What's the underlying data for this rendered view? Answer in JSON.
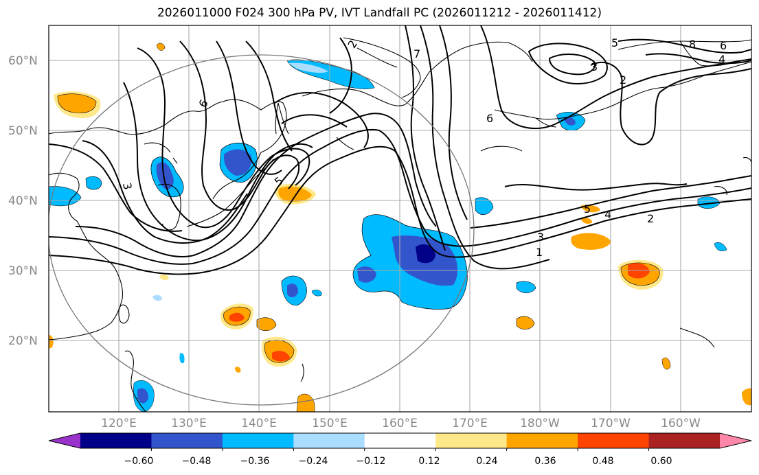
{
  "title": "2026011000 F024 300 hPa PV, IVT Landfall PC (2026011212 - 2026011412)",
  "map": {
    "lat_labels": [
      "60°N",
      "50°N",
      "40°N",
      "30°N",
      "20°N"
    ],
    "lon_labels": [
      "120°E",
      "130°E",
      "140°E",
      "150°E",
      "160°E",
      "170°E",
      "180°W",
      "170°W",
      "160°W"
    ],
    "contour_labels": [
      "2",
      "6",
      "3",
      "5",
      "7",
      "5",
      "8",
      "6",
      "3",
      "2",
      "4",
      "6",
      "5",
      "4",
      "2",
      "3",
      "1"
    ]
  },
  "colorbar": {
    "ticks": [
      "−0.60",
      "−0.48",
      "−0.36",
      "−0.24",
      "−0.12",
      "0.12",
      "0.24",
      "0.36",
      "0.48",
      "0.60"
    ],
    "colors": [
      "#9933cc",
      "#000088",
      "#3355cc",
      "#00bbff",
      "#aaddff",
      "#ffffff",
      "#ffe88a",
      "#ffa500",
      "#ff4400",
      "#aa2222",
      "#ff88aa"
    ]
  }
}
